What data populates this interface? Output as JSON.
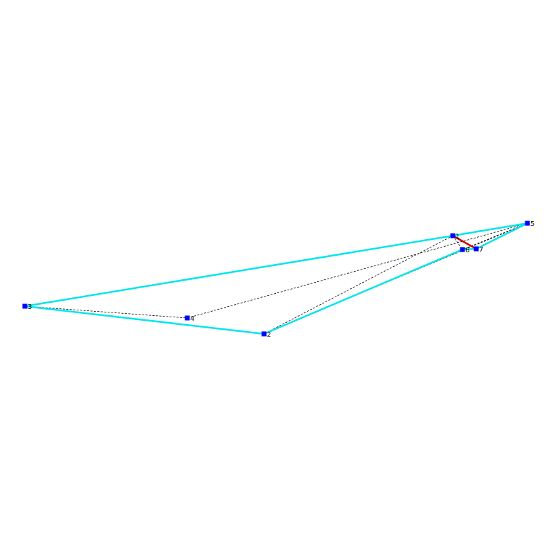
{
  "nodes": [
    {
      "label": "1"
    },
    {
      "label": "2"
    },
    {
      "label": "3"
    },
    {
      "label": "4"
    },
    {
      "label": "5"
    },
    {
      "label": "6"
    },
    {
      "label": "7"
    }
  ]
}
